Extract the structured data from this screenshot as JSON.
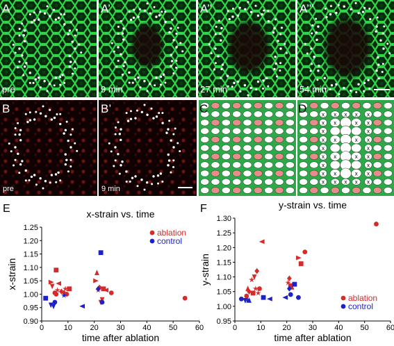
{
  "panels": {
    "A": {
      "letter": "A",
      "caption": "pre"
    },
    "A1": {
      "letter": "A’",
      "caption": "9 min"
    },
    "A2": {
      "letter": "A’’",
      "caption": "27 min"
    },
    "A3": {
      "letter": "A’’’",
      "caption": "54 min"
    },
    "B": {
      "letter": "B",
      "caption": "pre"
    },
    "B1": {
      "letter": "B’",
      "caption": "9 min"
    },
    "C": {
      "letter": "C"
    },
    "D": {
      "letter": "D"
    },
    "E": {
      "letter": "E"
    },
    "F": {
      "letter": "F"
    }
  },
  "lattice": {
    "x_mark": "x"
  },
  "colors": {
    "green": "#2ea84a",
    "red": "#d42b2b",
    "blue": "#1d22c8",
    "pink": "#e88b8b",
    "micro_green": "#22c83a",
    "micro_red": "#c0201c"
  },
  "chart_data": [
    {
      "type": "scatter",
      "title": "x-strain vs. time",
      "xlabel": "time after ablation",
      "ylabel": "x-strain",
      "xlim": [
        0,
        60
      ],
      "ylim": [
        0.9,
        1.25
      ],
      "xticks": [
        "0",
        "10",
        "20",
        "30",
        "40",
        "50",
        "60"
      ],
      "yticks": [
        "0.90",
        "0.95",
        "1.00",
        "1.05",
        "1.10",
        "1.15",
        "1.20",
        "1.25"
      ],
      "legend_position": "top-right",
      "series": [
        {
          "name": "ablation",
          "color": "#d42b2b",
          "points": [
            {
              "x": 5.5,
              "y": 1.09,
              "m": "square"
            },
            {
              "x": 3.5,
              "y": 1.045,
              "m": "tri-right"
            },
            {
              "x": 4,
              "y": 1.03,
              "m": "tri-down"
            },
            {
              "x": 5,
              "y": 1.005,
              "m": "circle"
            },
            {
              "x": 5.5,
              "y": 1.0,
              "m": "circle"
            },
            {
              "x": 6.5,
              "y": 1.04,
              "m": "tri-left"
            },
            {
              "x": 6,
              "y": 1.015,
              "m": "star"
            },
            {
              "x": 7.5,
              "y": 1.01,
              "m": "diamond"
            },
            {
              "x": 8.5,
              "y": 1.005,
              "m": "diamond"
            },
            {
              "x": 9,
              "y": 1.02,
              "m": "star"
            },
            {
              "x": 10.5,
              "y": 1.02,
              "m": "square"
            },
            {
              "x": 9.5,
              "y": 1.0,
              "m": "circle"
            },
            {
              "x": 21,
              "y": 1.08,
              "m": "tri-up"
            },
            {
              "x": 20.5,
              "y": 1.05,
              "m": "tri-right"
            },
            {
              "x": 21.5,
              "y": 1.015,
              "m": "star"
            },
            {
              "x": 22,
              "y": 1.025,
              "m": "diamond"
            },
            {
              "x": 23.5,
              "y": 1.02,
              "m": "square"
            },
            {
              "x": 24.5,
              "y": 1.015,
              "m": "tri-left"
            },
            {
              "x": 23,
              "y": 0.98,
              "m": "tri-down"
            },
            {
              "x": 22.5,
              "y": 0.97,
              "m": "tri-down"
            },
            {
              "x": 26.5,
              "y": 1.005,
              "m": "circle"
            },
            {
              "x": 54.5,
              "y": 0.985,
              "m": "circle"
            }
          ]
        },
        {
          "name": "control",
          "color": "#1d22c8",
          "points": [
            {
              "x": 1.5,
              "y": 0.985,
              "m": "square"
            },
            {
              "x": 3.5,
              "y": 0.96,
              "m": "tri-down"
            },
            {
              "x": 4.5,
              "y": 0.955,
              "m": "tri-down"
            },
            {
              "x": 5,
              "y": 0.97,
              "m": "circle"
            },
            {
              "x": 8.5,
              "y": 0.995,
              "m": "star"
            },
            {
              "x": 15.5,
              "y": 0.955,
              "m": "tri-left"
            },
            {
              "x": 21.5,
              "y": 1.02,
              "m": "diamond"
            },
            {
              "x": 22.5,
              "y": 1.155,
              "m": "square"
            },
            {
              "x": 23,
              "y": 0.97,
              "m": "circle"
            }
          ]
        }
      ]
    },
    {
      "type": "scatter",
      "title": "y-strain vs. time",
      "xlabel": "time after ablation",
      "ylabel": "y-strain",
      "xlim": [
        0,
        60
      ],
      "ylim": [
        0.95,
        1.3
      ],
      "xticks": [
        "0",
        "10",
        "20",
        "30",
        "40",
        "50",
        "60"
      ],
      "yticks": [
        "0.95",
        "1.00",
        "1.05",
        "1.10",
        "1.15",
        "1.20",
        "1.25",
        "1.30"
      ],
      "legend_position": "bottom-right",
      "series": [
        {
          "name": "ablation",
          "color": "#d42b2b",
          "points": [
            {
              "x": 4.5,
              "y": 1.035,
              "m": "circle"
            },
            {
              "x": 5,
              "y": 1.06,
              "m": "tri-up"
            },
            {
              "x": 5.5,
              "y": 1.05,
              "m": "diamond"
            },
            {
              "x": 6.5,
              "y": 1.09,
              "m": "star"
            },
            {
              "x": 7.5,
              "y": 1.1,
              "m": "tri-down"
            },
            {
              "x": 7,
              "y": 1.045,
              "m": "square"
            },
            {
              "x": 8,
              "y": 1.06,
              "m": "star"
            },
            {
              "x": 9.5,
              "y": 1.06,
              "m": "circle"
            },
            {
              "x": 10.5,
              "y": 1.22,
              "m": "tri-left"
            },
            {
              "x": 8.5,
              "y": 1.12,
              "m": "diamond"
            },
            {
              "x": 9,
              "y": 1.045,
              "m": "star"
            },
            {
              "x": 20.5,
              "y": 1.08,
              "m": "star"
            },
            {
              "x": 21,
              "y": 1.095,
              "m": "diamond"
            },
            {
              "x": 21.5,
              "y": 1.07,
              "m": "square"
            },
            {
              "x": 22,
              "y": 1.065,
              "m": "tri-up"
            },
            {
              "x": 24.5,
              "y": 1.165,
              "m": "tri-right"
            },
            {
              "x": 25.5,
              "y": 1.145,
              "m": "square"
            },
            {
              "x": 27,
              "y": 1.185,
              "m": "circle"
            },
            {
              "x": 54.5,
              "y": 1.28,
              "m": "circle"
            }
          ]
        },
        {
          "name": "control",
          "color": "#1d22c8",
          "points": [
            {
              "x": 2.5,
              "y": 1.025,
              "m": "circle"
            },
            {
              "x": 4,
              "y": 1.02,
              "m": "tri-down"
            },
            {
              "x": 5,
              "y": 1.02,
              "m": "star"
            },
            {
              "x": 5.5,
              "y": 1.02,
              "m": "tri-up"
            },
            {
              "x": 11,
              "y": 1.03,
              "m": "square"
            },
            {
              "x": 13.5,
              "y": 1.025,
              "m": "tri-left"
            },
            {
              "x": 19.5,
              "y": 1.03,
              "m": "tri-left"
            },
            {
              "x": 21,
              "y": 1.06,
              "m": "diamond"
            },
            {
              "x": 21.5,
              "y": 1.04,
              "m": "circle"
            },
            {
              "x": 23,
              "y": 1.075,
              "m": "square"
            },
            {
              "x": 24.5,
              "y": 1.03,
              "m": "circle"
            }
          ]
        }
      ]
    }
  ]
}
